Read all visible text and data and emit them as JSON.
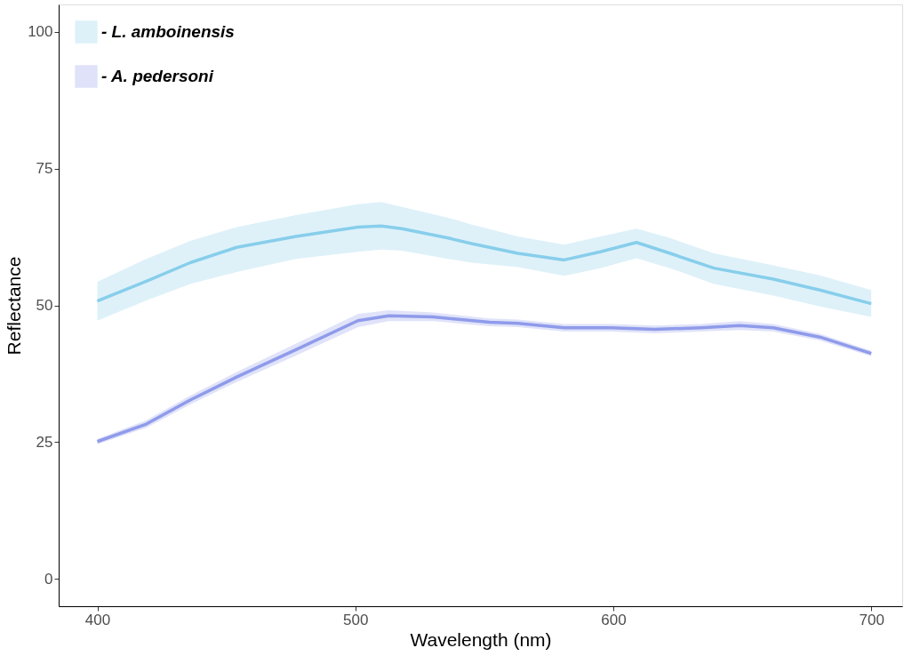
{
  "chart_data": {
    "type": "line",
    "xlabel": "Wavelength (nm)",
    "ylabel": "Reflectance",
    "xlim": [
      385,
      712
    ],
    "ylim": [
      -5,
      105
    ],
    "xticks": [
      400,
      500,
      600,
      700
    ],
    "yticks": [
      0,
      25,
      50,
      75,
      100
    ],
    "grid": false,
    "legend": "top left",
    "line_style": "solid",
    "marker": "none",
    "series": [
      {
        "name": "-  L. amboinensis",
        "color": "#87ceeb",
        "x": [
          400,
          419,
          436,
          454,
          477,
          501,
          510,
          518,
          536,
          545,
          563,
          581,
          595,
          609,
          622,
          639,
          662,
          680,
          700
        ],
        "values": [
          50.8,
          54.4,
          57.8,
          60.6,
          62.6,
          64.3,
          64.5,
          64.0,
          62.3,
          61.3,
          59.5,
          58.3,
          59.8,
          61.5,
          59.5,
          56.8,
          54.8,
          52.8,
          50.3
        ],
        "lower": [
          47.2,
          50.9,
          53.9,
          56.1,
          58.5,
          59.8,
          60.2,
          60.0,
          58.5,
          57.8,
          57.0,
          55.4,
          56.8,
          58.6,
          56.8,
          53.9,
          51.8,
          49.8,
          47.9
        ],
        "upper": [
          54.3,
          58.5,
          61.8,
          64.3,
          66.5,
          68.5,
          68.9,
          68.0,
          66.0,
          64.8,
          62.6,
          61.1,
          62.6,
          64.0,
          62.3,
          59.5,
          57.3,
          55.5,
          52.8
        ]
      },
      {
        "name": "-  A. pedersoni",
        "color": "#8f9bea",
        "x": [
          400,
          419,
          436,
          454,
          477,
          501,
          513,
          530,
          552,
          563,
          581,
          599,
          616,
          634,
          649,
          662,
          680,
          700
        ],
        "values": [
          25.1,
          28.3,
          32.7,
          36.9,
          41.9,
          47.2,
          48.1,
          47.9,
          46.9,
          46.7,
          45.9,
          45.9,
          45.6,
          45.9,
          46.3,
          45.9,
          44.2,
          41.2
        ],
        "lower": [
          24.6,
          27.6,
          31.9,
          36.0,
          40.8,
          46.0,
          47.1,
          47.1,
          46.2,
          46.0,
          45.2,
          45.2,
          44.9,
          45.2,
          45.5,
          45.2,
          43.6,
          40.7
        ],
        "upper": [
          25.6,
          29.0,
          33.5,
          37.8,
          43.0,
          48.4,
          49.1,
          48.7,
          47.6,
          47.4,
          46.6,
          46.6,
          46.3,
          46.6,
          47.1,
          46.6,
          44.8,
          41.7
        ]
      }
    ]
  }
}
